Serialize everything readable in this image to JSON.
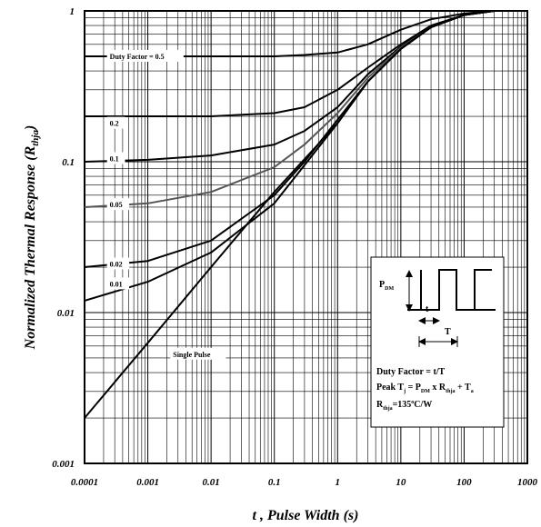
{
  "chart_data": {
    "type": "line",
    "xscale": "log",
    "yscale": "log",
    "xlim": [
      0.0001,
      1000
    ],
    "ylim": [
      0.001,
      1
    ],
    "grid": true,
    "xlabel": "t , Pulse Width (s)",
    "ylabel": {
      "main": "Normalized Thermal Response (R",
      "sub": "thja",
      "close": ")"
    },
    "x_ticks": [
      "0.0001",
      "0.001",
      "0.01",
      "0.1",
      "1",
      "10",
      "100",
      "1000"
    ],
    "y_ticks": [
      "0.001",
      "0.01",
      "0.1",
      "1"
    ],
    "series": [
      {
        "name": "Duty Factor = 0.5",
        "color": "#000000",
        "points": [
          [
            0.0001,
            0.5
          ],
          [
            0.001,
            0.5
          ],
          [
            0.01,
            0.5
          ],
          [
            0.1,
            0.5
          ],
          [
            0.3,
            0.51
          ],
          [
            1,
            0.53
          ],
          [
            3,
            0.6
          ],
          [
            10,
            0.75
          ],
          [
            30,
            0.88
          ],
          [
            100,
            0.96
          ],
          [
            300,
            1
          ],
          [
            1000,
            1
          ]
        ]
      },
      {
        "name": "0.2",
        "color": "#000000",
        "points": [
          [
            0.0001,
            0.2
          ],
          [
            0.001,
            0.2
          ],
          [
            0.01,
            0.2
          ],
          [
            0.1,
            0.21
          ],
          [
            0.3,
            0.23
          ],
          [
            1,
            0.3
          ],
          [
            3,
            0.42
          ],
          [
            10,
            0.6
          ],
          [
            30,
            0.8
          ],
          [
            100,
            0.94
          ],
          [
            300,
            1
          ],
          [
            1000,
            1
          ]
        ]
      },
      {
        "name": "0.1",
        "color": "#000000",
        "points": [
          [
            0.0001,
            0.1
          ],
          [
            0.001,
            0.103
          ],
          [
            0.01,
            0.11
          ],
          [
            0.1,
            0.13
          ],
          [
            0.3,
            0.16
          ],
          [
            1,
            0.23
          ],
          [
            3,
            0.38
          ],
          [
            10,
            0.58
          ],
          [
            30,
            0.79
          ],
          [
            100,
            0.94
          ],
          [
            300,
            1
          ],
          [
            1000,
            1
          ]
        ]
      },
      {
        "name": "0.05",
        "color": "#555555",
        "points": [
          [
            0.0001,
            0.05
          ],
          [
            0.001,
            0.053
          ],
          [
            0.01,
            0.063
          ],
          [
            0.1,
            0.092
          ],
          [
            0.3,
            0.13
          ],
          [
            1,
            0.21
          ],
          [
            3,
            0.36
          ],
          [
            10,
            0.57
          ],
          [
            30,
            0.78
          ],
          [
            100,
            0.94
          ],
          [
            300,
            1
          ],
          [
            1000,
            1
          ]
        ]
      },
      {
        "name": "0.02",
        "color": "#000000",
        "points": [
          [
            0.0001,
            0.02
          ],
          [
            0.001,
            0.022
          ],
          [
            0.01,
            0.03
          ],
          [
            0.1,
            0.06
          ],
          [
            0.3,
            0.1
          ],
          [
            1,
            0.19
          ],
          [
            3,
            0.34
          ],
          [
            10,
            0.56
          ],
          [
            30,
            0.78
          ],
          [
            100,
            0.94
          ],
          [
            300,
            1
          ],
          [
            1000,
            1
          ]
        ]
      },
      {
        "name": "0.01",
        "color": "#000000",
        "points": [
          [
            0.0001,
            0.012
          ],
          [
            0.001,
            0.016
          ],
          [
            0.01,
            0.025
          ],
          [
            0.1,
            0.053
          ],
          [
            0.3,
            0.095
          ],
          [
            1,
            0.18
          ],
          [
            3,
            0.34
          ],
          [
            10,
            0.56
          ],
          [
            30,
            0.78
          ],
          [
            100,
            0.94
          ],
          [
            300,
            1
          ],
          [
            1000,
            1
          ]
        ]
      },
      {
        "name": "Single Pulse",
        "color": "#000000",
        "points": [
          [
            0.0001,
            0.002
          ],
          [
            0.001,
            0.0063
          ],
          [
            0.01,
            0.02
          ],
          [
            0.1,
            0.063
          ],
          [
            1,
            0.18
          ],
          [
            3,
            0.34
          ],
          [
            10,
            0.56
          ],
          [
            30,
            0.78
          ],
          [
            100,
            0.94
          ],
          [
            300,
            1
          ],
          [
            1000,
            1
          ]
        ]
      }
    ],
    "curve_labels": [
      {
        "text": "Duty Factor = 0.5",
        "x": 0.00025,
        "y": 0.5
      },
      {
        "text": "0.2",
        "x": 0.00025,
        "y": 0.18
      },
      {
        "text": "0.1",
        "x": 0.00025,
        "y": 0.105
      },
      {
        "text": "0.05",
        "x": 0.00025,
        "y": 0.052
      },
      {
        "text": "0.02",
        "x": 0.00025,
        "y": 0.021
      },
      {
        "text": "0.01",
        "x": 0.00025,
        "y": 0.0155
      },
      {
        "text": "Single Pulse",
        "x": 0.0025,
        "y": 0.0053
      }
    ],
    "inset": {
      "pdm": "P",
      "pdm_sub": "DM",
      "t": "t",
      "T": "T",
      "line1": "Duty Factor = t/T",
      "line2_a": "Peak T",
      "line2_sub1": "j",
      "line2_b": " = P",
      "line2_sub2": "DM",
      "line2_c": " x R",
      "line2_sub3": "thja",
      "line2_d": " + T",
      "line2_sub4": "a",
      "line3_a": "R",
      "line3_sub": "thja",
      "line3_b": "=135",
      "line3_sup": "o",
      "line3_c": "C/W"
    }
  }
}
